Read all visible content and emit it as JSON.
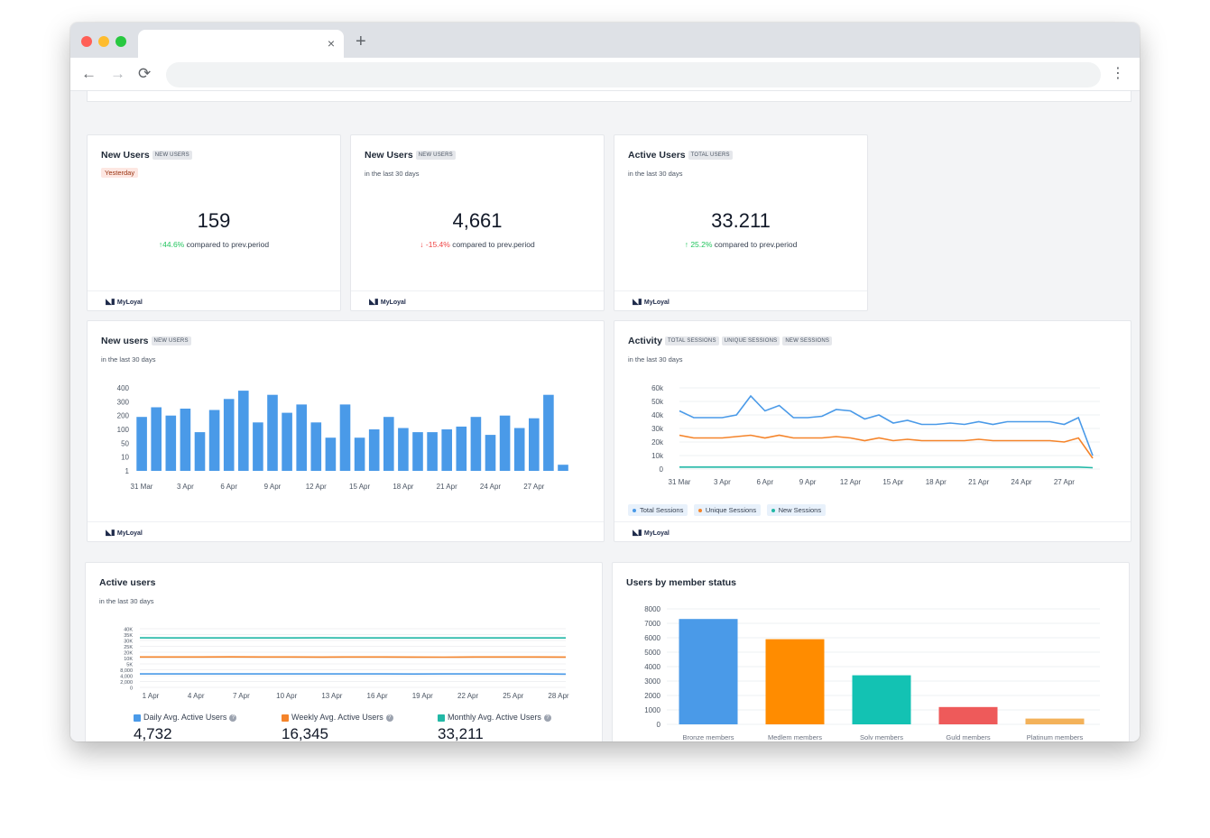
{
  "browser": {
    "tab_close": "×",
    "new_tab": "+",
    "nav_back": "←",
    "nav_forward": "→",
    "nav_reload": "⟳",
    "menu": "⋮"
  },
  "brand": {
    "logo_text": "MyLoyal",
    "logo_mark": "◣▮"
  },
  "kpis": [
    {
      "title": "New Users",
      "tag": "NEW USERS",
      "subtitle": "Yesterday",
      "value": "159",
      "delta": "44.6%",
      "direction": "up",
      "compare": "compared to prev.period"
    },
    {
      "title": "New Users",
      "tag": "NEW USERS",
      "subtitle": "in the last 30 days",
      "value": "4,661",
      "delta": "-15.4%",
      "direction": "down",
      "compare": "compared to prev.period"
    },
    {
      "title": "Active Users",
      "tag": "TOTAL USERS",
      "subtitle": "in the last 30 days",
      "value": "33.211",
      "delta": "25.2%",
      "direction": "up",
      "compare": "compared to prev.period"
    }
  ],
  "new_users_card": {
    "title": "New users",
    "tag": "NEW USERS",
    "subtitle": "in the last 30 days"
  },
  "activity_card": {
    "title": "Activity",
    "tags": [
      "TOTAL SESSIONS",
      "UNIQUE SESSIONS",
      "NEW SESSIONS"
    ],
    "subtitle": "in the last 30 days",
    "legend": [
      {
        "label": "Total Sessions",
        "color": "#4a9ae8"
      },
      {
        "label": "Unique Sessions",
        "color": "#f5842a"
      },
      {
        "label": "New Sessions",
        "color": "#22b8a6"
      }
    ]
  },
  "active_users_card": {
    "title": "Active users",
    "subtitle": "in the last 30 days",
    "stats": [
      {
        "label": "Daily Avg. Active Users",
        "value": "4,732",
        "color": "#4a9ae8"
      },
      {
        "label": "Weekly Avg. Active Users",
        "value": "16,345",
        "color": "#f5842a"
      },
      {
        "label": "Monthly Avg. Active Users",
        "value": "33,211",
        "color": "#22b8a6"
      }
    ],
    "help_icon": "?"
  },
  "member_card": {
    "title": "Users by member status"
  },
  "chart_data": [
    {
      "type": "bar",
      "title": "New users",
      "color": "#4a9ae8",
      "y_ticks": [
        "400",
        "300",
        "200",
        "100",
        "50",
        "10",
        "1"
      ],
      "x_ticks": [
        "31 Mar",
        "3 Apr",
        "6 Apr",
        "9 Apr",
        "12 Apr",
        "15 Apr",
        "18 Apr",
        "21 Apr",
        "24 Apr",
        "27 Apr"
      ],
      "values": [
        190,
        260,
        200,
        250,
        90,
        240,
        320,
        380,
        150,
        350,
        220,
        280,
        150,
        70,
        280,
        70,
        100,
        190,
        110,
        90,
        90,
        100,
        120,
        190,
        80,
        200,
        110,
        180,
        350,
        5
      ]
    },
    {
      "type": "line",
      "title": "Activity",
      "y_ticks": [
        "60k",
        "50k",
        "40k",
        "30k",
        "20k",
        "10k",
        "0"
      ],
      "ylim": [
        0,
        60000
      ],
      "x_ticks": [
        "31 Mar",
        "3 Apr",
        "6 Apr",
        "9 Apr",
        "12 Apr",
        "15 Apr",
        "18 Apr",
        "21 Apr",
        "24 Apr",
        "27 Apr"
      ],
      "series": [
        {
          "name": "Total Sessions",
          "color": "#4a9ae8",
          "values": [
            43000,
            38000,
            38000,
            38000,
            40000,
            54000,
            43000,
            47000,
            38000,
            38000,
            39000,
            44000,
            43000,
            37000,
            40000,
            34000,
            36000,
            33000,
            33000,
            34000,
            33000,
            35000,
            33000,
            35000,
            35000,
            35000,
            35000,
            33000,
            38000,
            10000
          ]
        },
        {
          "name": "Unique Sessions",
          "color": "#f5842a",
          "values": [
            25000,
            23000,
            23000,
            23000,
            24000,
            25000,
            23000,
            25000,
            23000,
            23000,
            23000,
            24000,
            23000,
            21000,
            23000,
            21000,
            22000,
            21000,
            21000,
            21000,
            21000,
            22000,
            21000,
            21000,
            21000,
            21000,
            21000,
            20000,
            23000,
            8000
          ]
        },
        {
          "name": "New Sessions",
          "color": "#22b8a6",
          "values": [
            1500,
            1500,
            1500,
            1500,
            1500,
            1500,
            1500,
            1500,
            1500,
            1500,
            1500,
            1500,
            1500,
            1500,
            1500,
            1500,
            1500,
            1500,
            1500,
            1500,
            1500,
            1500,
            1500,
            1500,
            1500,
            1500,
            1500,
            1500,
            1500,
            1000
          ]
        }
      ]
    },
    {
      "type": "line",
      "title": "Active users",
      "y_ticks": [
        "40K",
        "35K",
        "30K",
        "25K",
        "20K",
        "10K",
        "5K",
        "8,000",
        "4,000",
        "2,000",
        "0"
      ],
      "x_ticks": [
        "1 Apr",
        "4 Apr",
        "7 Apr",
        "10 Apr",
        "13 Apr",
        "16 Apr",
        "19 Apr",
        "22 Apr",
        "25 Apr",
        "28 Apr"
      ],
      "series": [
        {
          "name": "Monthly Avg. Active Users",
          "color": "#22b8a6",
          "values": [
            33300,
            33200,
            33200,
            33100,
            33200,
            33200,
            33300,
            33200,
            33100,
            33200,
            33200,
            33100,
            33200,
            33100,
            33000
          ]
        },
        {
          "name": "Weekly Avg. Active Users",
          "color": "#f5842a",
          "values": [
            16500,
            16400,
            16400,
            16600,
            16500,
            16500,
            16300,
            16500,
            16400,
            16300,
            16200,
            16400,
            16500,
            16400,
            16300
          ]
        },
        {
          "name": "Daily Avg. Active Users",
          "color": "#4a9ae8",
          "values": [
            4800,
            4800,
            4700,
            4900,
            4700,
            4700,
            4800,
            4700,
            4700,
            4600,
            4800,
            4700,
            4700,
            4800,
            4100
          ]
        }
      ]
    },
    {
      "type": "bar",
      "title": "Users by member status",
      "ylim": [
        0,
        8000
      ],
      "y_ticks": [
        "8000",
        "7000",
        "6000",
        "5000",
        "4000",
        "3000",
        "2000",
        "1000",
        "0"
      ],
      "categories": [
        "Bronze members",
        "Medlem members",
        "Solv members",
        "Guld members",
        "Platinum members"
      ],
      "values": [
        7300,
        5900,
        3400,
        1200,
        400
      ],
      "colors": [
        "#4a9ae8",
        "#ff8c00",
        "#13c2b3",
        "#ee5a5a",
        "#f3b25a"
      ]
    }
  ]
}
